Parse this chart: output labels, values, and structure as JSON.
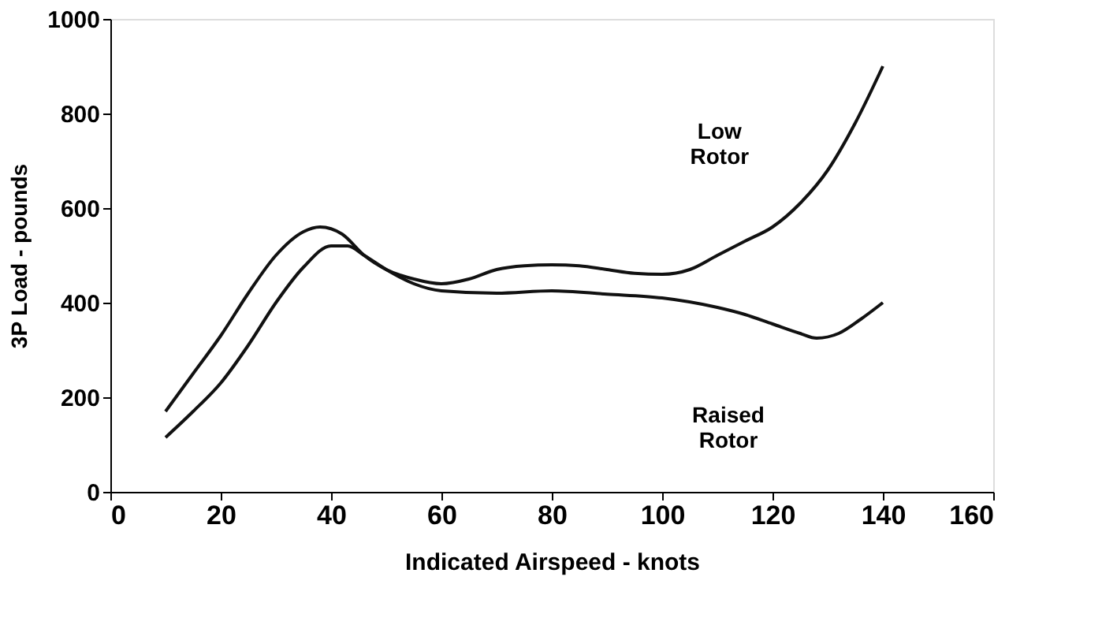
{
  "chart_data": {
    "type": "line",
    "xlabel": "Indicated Airspeed - knots",
    "ylabel": "3P Load - pounds",
    "xlim": [
      0,
      160
    ],
    "xticks": [
      0,
      20,
      40,
      60,
      80,
      100,
      120,
      140,
      160
    ],
    "ylim": [
      0,
      1000
    ],
    "yticks": [
      0,
      200,
      400,
      600,
      800,
      1000
    ],
    "grid": false,
    "marker": "none",
    "line_style": "solid",
    "series": [
      {
        "color": "#111111",
        "x": [
          10,
          15,
          20,
          25,
          30,
          35,
          38,
          42,
          46,
          50,
          55,
          60,
          65,
          70,
          75,
          80,
          85,
          90,
          95,
          100,
          105,
          110,
          115,
          120,
          125,
          130,
          135,
          140
        ],
        "values": [
          170,
          250,
          330,
          420,
          500,
          550,
          560,
          545,
          500,
          470,
          450,
          440,
          450,
          470,
          478,
          480,
          478,
          470,
          462,
          460,
          470,
          500,
          530,
          560,
          610,
          680,
          780,
          900
        ]
      },
      {
        "color": "#111111",
        "x": [
          10,
          15,
          20,
          25,
          30,
          35,
          40,
          43,
          46,
          50,
          55,
          60,
          70,
          80,
          90,
          100,
          110,
          115,
          120,
          125,
          128,
          132,
          136,
          140
        ],
        "values": [
          115,
          170,
          230,
          310,
          400,
          475,
          520,
          520,
          500,
          470,
          440,
          425,
          420,
          425,
          418,
          410,
          390,
          375,
          355,
          335,
          325,
          335,
          365,
          400
        ]
      }
    ],
    "annotations": [
      "Low Rotor",
      "Raised Rotor"
    ]
  }
}
